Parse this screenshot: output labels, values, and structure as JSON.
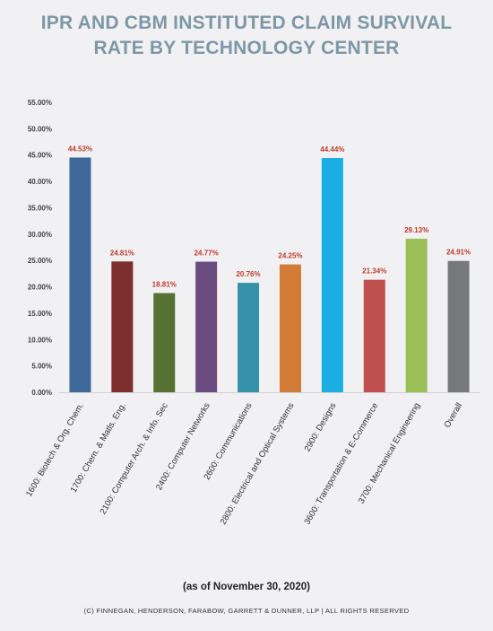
{
  "chart_data": {
    "type": "bar",
    "title_line1": "IPR AND CBM INSTITUTED CLAIM SURVIVAL",
    "title_line2": "RATE BY TECHNOLOGY CENTER",
    "categories": [
      "1600: Biotech & Org. Chem.",
      "1700: Chem. & Matls. Eng.",
      "2100: Computer Arch. & Info. Sec",
      "2400: Computer Networks",
      "2600: Communications",
      "2800: Electrical and Optical Systems",
      "2900: Designs",
      "3600: Transportation & E-Commerce",
      "3700: Mechanical Engineering",
      "Overall"
    ],
    "values": [
      44.53,
      24.81,
      18.81,
      24.77,
      20.76,
      24.25,
      44.44,
      21.34,
      29.13,
      24.91
    ],
    "value_labels": [
      "44.53%",
      "24.81%",
      "18.81%",
      "24.77%",
      "20.76%",
      "24.25%",
      "44.44%",
      "21.34%",
      "29.13%",
      "24.91%"
    ],
    "bar_colors": [
      "#3e6999",
      "#7d2e2f",
      "#577133",
      "#6a4c80",
      "#3592a8",
      "#d27b36",
      "#1baee3",
      "#c0504d",
      "#9cbe57",
      "#77787b"
    ],
    "label_color": "#c0392b",
    "ylim": [
      0,
      55
    ],
    "y_ticks": [
      "0.00%",
      "5.00%",
      "10.00%",
      "15.00%",
      "20.00%",
      "25.00%",
      "30.00%",
      "35.00%",
      "40.00%",
      "45.00%",
      "50.00%",
      "55.00%"
    ],
    "grid": false
  },
  "footer": {
    "note": "(as of November 30, 2020)",
    "copyright": "(C) FINNEGAN, HENDERSON, FARABOW, GARRETT & DUNNER, LLP | ALL RIGHTS RESERVED"
  }
}
